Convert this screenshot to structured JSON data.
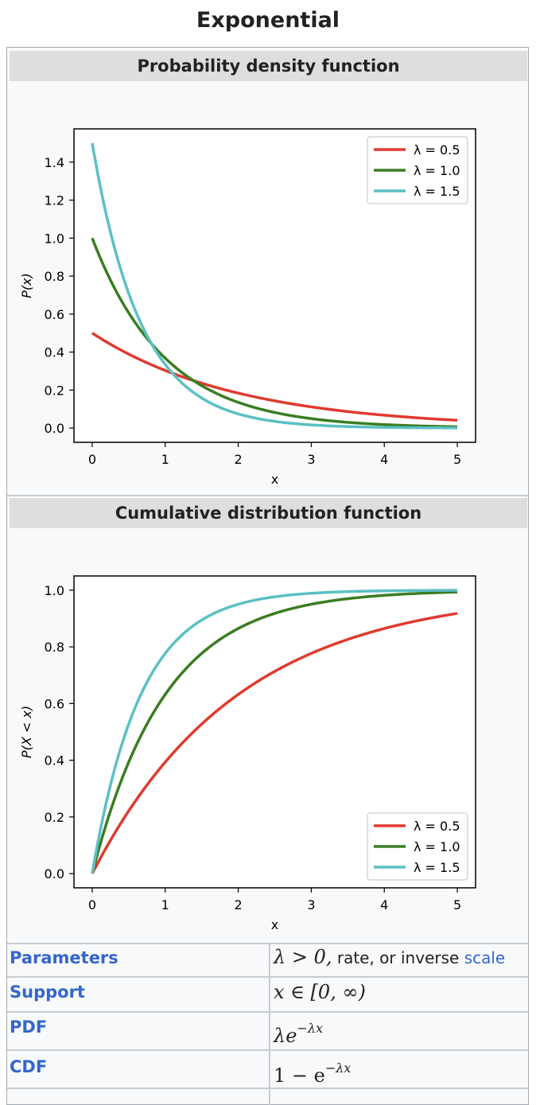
{
  "infobox": {
    "title": "Exponential",
    "pdf_header": "Probability density function",
    "cdf_header": "Cumulative distribution function"
  },
  "params": {
    "rows": [
      {
        "label": "Parameters",
        "math": "λ > 0,",
        "text": " rate, or inverse ",
        "link": "scale"
      },
      {
        "label": "Support",
        "math": "x ∈ [0, ∞)"
      },
      {
        "label": "PDF",
        "math_base": "λe",
        "math_sup": "−λx"
      },
      {
        "label": "CDF",
        "math_base": "1 − e",
        "math_sup": "−λx"
      }
    ]
  },
  "chart_data": [
    {
      "type": "line",
      "title": "Probability density function",
      "xlabel": "x",
      "ylabel": "P(x)",
      "xlim": [
        -0.25,
        5.25
      ],
      "ylim": [
        -0.075,
        1.575
      ],
      "xticks": [
        "0",
        "1",
        "2",
        "3",
        "4",
        "5"
      ],
      "yticks": [
        "0.0",
        "0.2",
        "0.4",
        "0.6",
        "0.8",
        "1.0",
        "1.2",
        "1.4"
      ],
      "legend_position": "top-right",
      "function": "pdf",
      "series": [
        {
          "name": "λ = 0.5",
          "lambda": 0.5,
          "color": "#e03a2f"
        },
        {
          "name": "λ = 1.0",
          "lambda": 1.0,
          "color": "#3a7d22"
        },
        {
          "name": "λ = 1.5",
          "lambda": 1.5,
          "color": "#5bc0c4"
        }
      ]
    },
    {
      "type": "line",
      "title": "Cumulative distribution function",
      "xlabel": "x",
      "ylabel": "P(X < x)",
      "xlim": [
        -0.25,
        5.25
      ],
      "ylim": [
        -0.05,
        1.05
      ],
      "xticks": [
        "0",
        "1",
        "2",
        "3",
        "4",
        "5"
      ],
      "yticks": [
        "0.0",
        "0.2",
        "0.4",
        "0.6",
        "0.8",
        "1.0"
      ],
      "legend_position": "bottom-right",
      "function": "cdf",
      "series": [
        {
          "name": "λ = 0.5",
          "lambda": 0.5,
          "color": "#e03a2f"
        },
        {
          "name": "λ = 1.0",
          "lambda": 1.0,
          "color": "#3a7d22"
        },
        {
          "name": "λ = 1.5",
          "lambda": 1.5,
          "color": "#5bc0c4"
        }
      ]
    }
  ]
}
